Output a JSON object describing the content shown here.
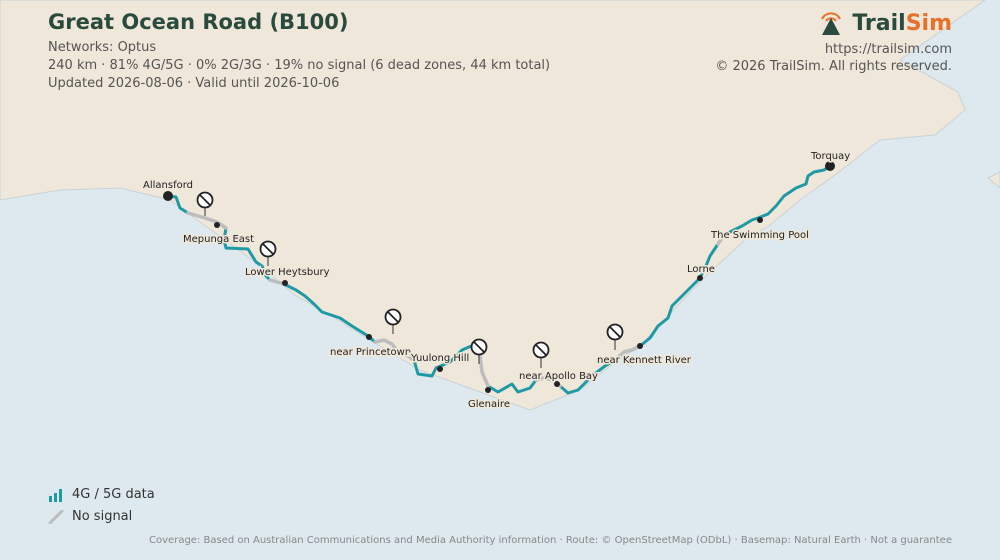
{
  "header": {
    "title": "Great Ocean Road (B100)",
    "networks": "Networks: Optus",
    "stats": "240 km · 81% 4G/5G · 0% 2G/3G · 19% no signal (6 dead zones, 44 km total)",
    "updated": "Updated 2026-08-06 · Valid until 2026-10-06"
  },
  "brand": {
    "name_part1": "Trail",
    "name_part2": "Sim",
    "url": "https://trailsim.com",
    "copyright": "© 2026 TrailSim. All rights reserved."
  },
  "legend": {
    "good_label": "4G / 5G data",
    "none_label": "No signal"
  },
  "footer": "Coverage: Based on Australian Communications and Media Authority information · Route: © OpenStreetMap (ODbL) · Basemap: Natural Earth · Not a guarantee",
  "places": {
    "allansford": "Allansford",
    "mepunga_east": "Mepunga East",
    "lower_heytsbury": "Lower Heytsbury",
    "near_princetown": "near Princetown",
    "yuulong_hill": "Yuulong Hill",
    "glenaire": "Glenaire",
    "near_apollo_bay": "near Apollo Bay",
    "near_kennett_river": "near Kennett River",
    "lorne": "Lorne",
    "swimming_pool": "The Swimming Pool",
    "torquay": "Torquay"
  },
  "colors": {
    "sea": "#dde9ee",
    "land": "#efe7d9",
    "coverage_good": "#1f9aa5",
    "coverage_none": "#bdbdbd",
    "brand_dark": "#2b4a3e",
    "brand_orange": "#e8702a"
  },
  "icons": {
    "dead_zone": "no-signal-icon",
    "brand_logo": "signal-tower-icon",
    "legend_good": "signal-bars-icon",
    "legend_none": "no-signal-line-icon"
  }
}
